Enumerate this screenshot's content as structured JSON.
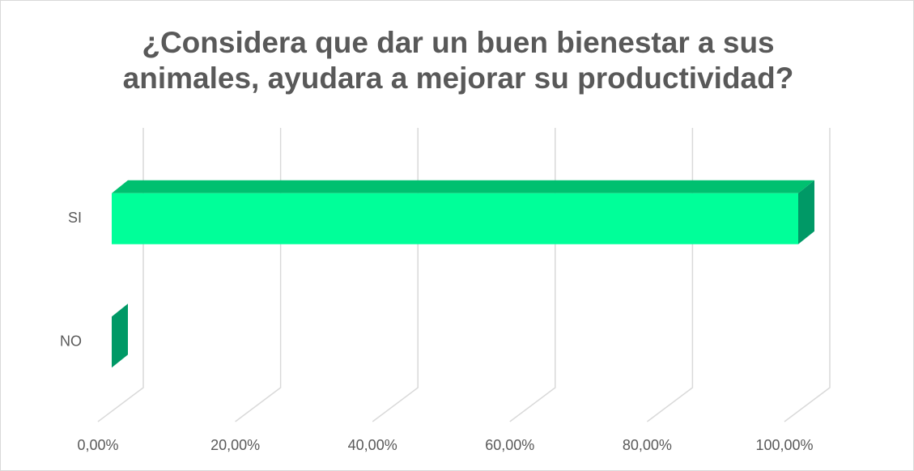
{
  "chart_data": {
    "type": "bar3d",
    "orientation": "horizontal",
    "title": "¿Considera que dar un buen bienestar a sus animales, ayudara a mejorar su productividad?",
    "categories": [
      "NO",
      "SI"
    ],
    "values": [
      0,
      1.0
    ],
    "xlim": [
      0,
      1.0
    ],
    "xticks": [
      {
        "value": 0,
        "label": "0,00%"
      },
      {
        "value": 0.2,
        "label": "20,00%"
      },
      {
        "value": 0.4,
        "label": "40,00%"
      },
      {
        "value": 0.6,
        "label": "60,00%"
      },
      {
        "value": 0.8,
        "label": "80,00%"
      },
      {
        "value": 1.0,
        "label": "100,00%"
      }
    ],
    "color": "#00ff99",
    "grid": true
  }
}
